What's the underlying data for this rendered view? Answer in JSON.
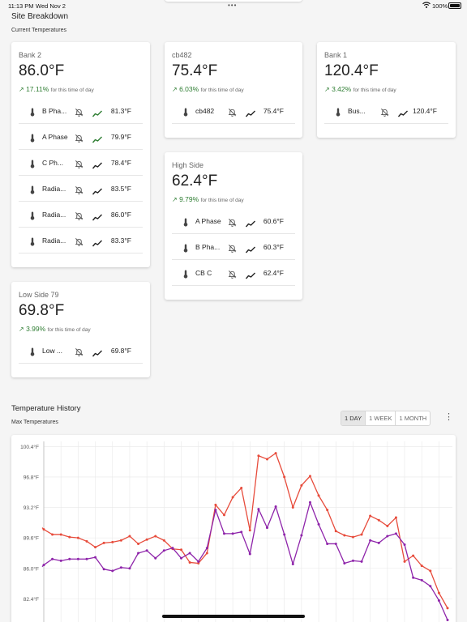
{
  "status_bar": {
    "time": "11:13 PM",
    "date": "Wed Nov 2",
    "multitask_dots": "•••",
    "battery": "100%"
  },
  "page": {
    "title": "Site Breakdown",
    "section_subtitle": "Current Temperatures"
  },
  "colors": {
    "trend_up": "#2e7d32",
    "series_red": "#e74c3c",
    "series_purple": "#8e24aa",
    "grid": "#e8e8e8",
    "selected_range_bg": "#e6e6e6"
  },
  "cards": [
    {
      "id": "bank2",
      "name": "Bank 2",
      "temperature": "86.0°F",
      "change": "17.11%",
      "change_note": "for this time of day",
      "sensors": [
        {
          "label": "B Pha...",
          "value": "81.3°F",
          "alert_muted": true,
          "trend": "green"
        },
        {
          "label": "A Phase",
          "value": "79.9°F",
          "alert_muted": true,
          "trend": "green"
        },
        {
          "label": "C Ph...",
          "value": "78.4°F",
          "alert_muted": true,
          "trend": "dark"
        },
        {
          "label": "Radia...",
          "value": "83.5°F",
          "alert_muted": true,
          "trend": "dark"
        },
        {
          "label": "Radia...",
          "value": "86.0°F",
          "alert_muted": true,
          "trend": "dark"
        },
        {
          "label": "Radia...",
          "value": "83.3°F",
          "alert_muted": true,
          "trend": "dark"
        }
      ]
    },
    {
      "id": "cb482",
      "name": "cb482",
      "temperature": "75.4°F",
      "change": "6.03%",
      "change_note": "for this time of day",
      "sensors": [
        {
          "label": "cb482",
          "value": "75.4°F",
          "alert_muted": true,
          "trend": "dark"
        }
      ]
    },
    {
      "id": "bank1",
      "name": "Bank 1",
      "temperature": "120.4°F",
      "change": "3.42%",
      "change_note": "for this time of day",
      "sensors": [
        {
          "label": "Bus...",
          "value": "120.4°F",
          "alert_muted": true,
          "trend": "dark"
        }
      ]
    },
    {
      "id": "highside",
      "name": "High Side",
      "temperature": "62.4°F",
      "change": "9.79%",
      "change_note": "for this time of day",
      "sensors": [
        {
          "label": "A Phase",
          "value": "60.6°F",
          "alert_muted": true,
          "trend": "dark"
        },
        {
          "label": "B Pha...",
          "value": "60.3°F",
          "alert_muted": true,
          "trend": "dark"
        },
        {
          "label": "CB C",
          "value": "62.4°F",
          "alert_muted": true,
          "trend": "dark"
        }
      ]
    },
    {
      "id": "lowside79",
      "name": "Low Side 79",
      "temperature": "69.8°F",
      "change": "3.99%",
      "change_note": "for this time of day",
      "sensors": [
        {
          "label": "Low ...",
          "value": "69.8°F",
          "alert_muted": true,
          "trend": "dark"
        }
      ]
    }
  ],
  "history": {
    "title": "Temperature History",
    "subtitle": "Max Temperatures",
    "ranges": [
      "1 DAY",
      "1 WEEK",
      "1 MONTH"
    ],
    "selected_range": "1 DAY",
    "more_icon": "kebab-menu-icon"
  },
  "chart_data": {
    "type": "line",
    "ylabel": "",
    "yticks": [
      "100.4°F",
      "96.8°F",
      "93.2°F",
      "89.6°F",
      "86.0°F",
      "82.4°F"
    ],
    "ylim": [
      78.8,
      101.0
    ],
    "grid": true,
    "legend": "none",
    "series": [
      {
        "color": "#e74c3c",
        "values": [
          90.6,
          90.0,
          90.0,
          89.7,
          89.6,
          89.2,
          88.5,
          89.0,
          89.1,
          89.3,
          89.8,
          88.9,
          89.4,
          89.8,
          89.3,
          88.3,
          88.2,
          86.7,
          86.6,
          87.8,
          93.5,
          92.3,
          94.4,
          95.5,
          90.5,
          99.3,
          98.9,
          99.6,
          96.8,
          93.2,
          95.8,
          96.9,
          94.6,
          92.9,
          90.4,
          89.9,
          89.7,
          90.0,
          92.2,
          91.7,
          91.0,
          92.0,
          86.8,
          87.5,
          86.3,
          85.7,
          83.1,
          81.3
        ],
        "left_edge": 90.8
      },
      {
        "color": "#8e24aa",
        "values": [
          86.4,
          87.1,
          86.9,
          87.1,
          87.1,
          87.1,
          87.3,
          85.9,
          85.7,
          86.1,
          86.0,
          87.8,
          88.1,
          87.2,
          88.1,
          88.4,
          87.2,
          87.8,
          86.8,
          88.4,
          92.9,
          90.1,
          90.1,
          90.3,
          87.7,
          93.0,
          90.8,
          93.3,
          90.0,
          86.5,
          89.9,
          93.8,
          91.2,
          88.9,
          88.9,
          86.6,
          86.9,
          86.8,
          89.3,
          89.0,
          89.8,
          90.1,
          88.8,
          84.9,
          84.6,
          83.9,
          82.2,
          79.9
        ],
        "left_edge": 86.2
      }
    ]
  }
}
